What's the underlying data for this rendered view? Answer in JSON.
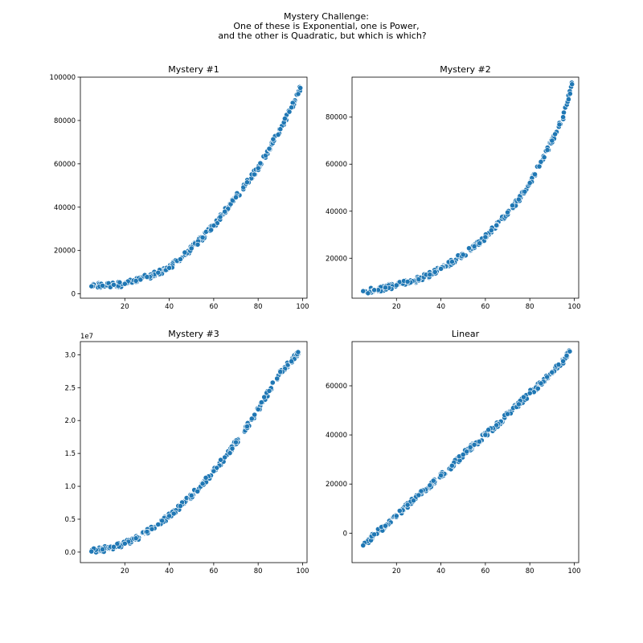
{
  "figure": {
    "title_lines": [
      "Mystery Challenge:",
      "One of these is Exponential, one is Power,",
      "and the other is Quadratic, but which is which?"
    ]
  },
  "chart_data": [
    {
      "type": "scatter",
      "title": "Mystery #1",
      "xlabel": "",
      "ylabel": "",
      "xlim": [
        0,
        102
      ],
      "ylim": [
        -2000,
        100000
      ],
      "xticks": [
        20,
        40,
        60,
        80,
        100
      ],
      "yticks": [
        0,
        20000,
        40000,
        60000,
        80000,
        100000
      ],
      "ytick_labels": [
        "0",
        "20000",
        "40000",
        "60000",
        "80000",
        "100000"
      ],
      "y_offset_label": "",
      "grid": false,
      "marker_color": "#1f77b4",
      "series": [
        {
          "x": [
            5,
            10,
            15,
            20,
            25,
            30,
            35,
            40,
            45,
            50,
            55,
            60,
            65,
            70,
            75,
            80,
            85,
            90,
            95,
            99
          ],
          "y": [
            3500,
            3800,
            4200,
            4600,
            6000,
            7800,
            9800,
            12000,
            16000,
            21000,
            26000,
            31500,
            38000,
            44500,
            51500,
            58000,
            67000,
            76000,
            86000,
            95000
          ]
        }
      ]
    },
    {
      "type": "scatter",
      "title": "Mystery #2",
      "xlabel": "",
      "ylabel": "",
      "xlim": [
        0,
        102
      ],
      "ylim": [
        3000,
        97000
      ],
      "xticks": [
        20,
        40,
        60,
        80,
        100
      ],
      "yticks": [
        20000,
        40000,
        60000,
        80000
      ],
      "ytick_labels": [
        "20000",
        "40000",
        "60000",
        "80000"
      ],
      "y_offset_label": "",
      "grid": false,
      "marker_color": "#1f77b4",
      "series": [
        {
          "x": [
            5,
            10,
            15,
            20,
            25,
            30,
            35,
            40,
            45,
            50,
            55,
            60,
            65,
            70,
            75,
            80,
            85,
            90,
            95,
            99
          ],
          "y": [
            6000,
            6500,
            7500,
            8500,
            10000,
            11000,
            13000,
            15500,
            18500,
            21500,
            25000,
            29000,
            34000,
            39500,
            45000,
            52000,
            61000,
            70000,
            80000,
            94000
          ]
        }
      ]
    },
    {
      "type": "scatter",
      "title": "Mystery #3",
      "xlabel": "",
      "ylabel": "",
      "xlim": [
        0,
        102
      ],
      "ylim": [
        -0.16,
        3.2
      ],
      "xticks": [
        20,
        40,
        60,
        80,
        100
      ],
      "yticks": [
        0.0,
        0.5,
        1.0,
        1.5,
        2.0,
        2.5,
        3.0
      ],
      "ytick_labels": [
        "0.0",
        "0.5",
        "1.0",
        "1.5",
        "2.0",
        "2.5",
        "3.0"
      ],
      "y_offset_label": "1e7",
      "grid": false,
      "marker_color": "#1f77b4",
      "series": [
        {
          "x": [
            5,
            10,
            15,
            20,
            25,
            30,
            35,
            40,
            45,
            50,
            55,
            60,
            65,
            70,
            75,
            80,
            85,
            90,
            95,
            98
          ],
          "y": [
            0.01,
            0.04,
            0.08,
            0.13,
            0.21,
            0.31,
            0.42,
            0.55,
            0.7,
            0.86,
            1.04,
            1.23,
            1.44,
            1.67,
            1.91,
            2.17,
            2.45,
            2.74,
            2.9,
            3.04
          ]
        }
      ]
    },
    {
      "type": "scatter",
      "title": "Linear",
      "xlabel": "",
      "ylabel": "",
      "xlim": [
        0,
        102
      ],
      "ylim": [
        -12000,
        78000
      ],
      "xticks": [
        20,
        40,
        60,
        80,
        100
      ],
      "yticks": [
        0,
        20000,
        40000,
        60000
      ],
      "ytick_labels": [
        "0",
        "20000",
        "40000",
        "60000"
      ],
      "y_offset_label": "",
      "grid": false,
      "marker_color": "#1f77b4",
      "series": [
        {
          "x": [
            5,
            10,
            15,
            20,
            25,
            30,
            35,
            40,
            45,
            50,
            55,
            60,
            65,
            70,
            75,
            80,
            85,
            90,
            95,
            98
          ],
          "y": [
            -5000,
            -500,
            3000,
            7000,
            11500,
            15500,
            19500,
            23500,
            27500,
            32000,
            36000,
            40000,
            44000,
            48500,
            52500,
            57000,
            61000,
            65500,
            70000,
            74000
          ]
        }
      ]
    }
  ]
}
